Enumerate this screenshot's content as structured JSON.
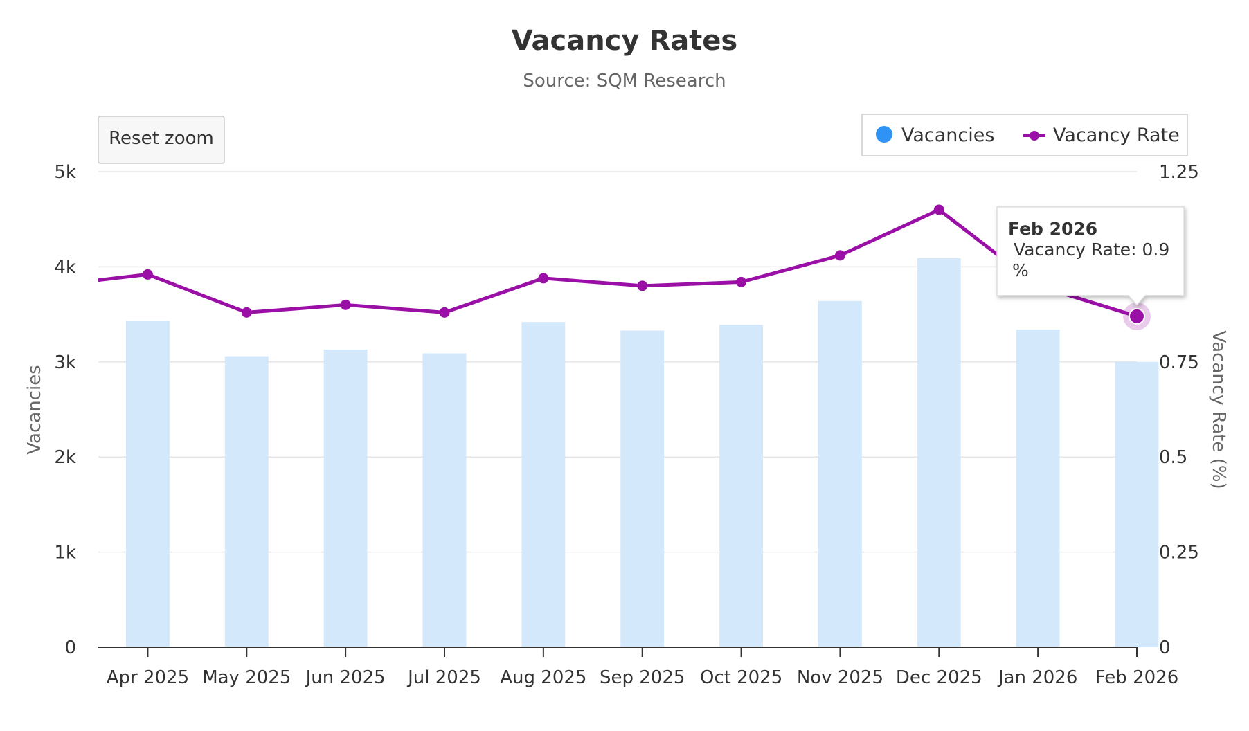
{
  "chart_data": {
    "type": "bar",
    "title": "Vacancy Rates",
    "subtitle": "Source: SQM Research",
    "categories": [
      "Apr 2025",
      "May 2025",
      "Jun 2025",
      "Jul 2025",
      "Aug 2025",
      "Sep 2025",
      "Oct 2025",
      "Nov 2025",
      "Dec 2025",
      "Jan 2026",
      "Feb 2026"
    ],
    "series": [
      {
        "name": "Vacancies",
        "type": "bar",
        "axis": "left",
        "color": "#d4e8fc",
        "legend_color": "#2e93f5",
        "values": [
          3430,
          3060,
          3130,
          3090,
          3420,
          3330,
          3390,
          3640,
          4090,
          3340,
          3000
        ]
      },
      {
        "name": "Vacancy Rate",
        "type": "line",
        "axis": "right",
        "color": "#9a0fa6",
        "values": [
          0.98,
          0.88,
          0.9,
          0.88,
          0.97,
          0.95,
          0.96,
          1.03,
          1.15,
          0.95,
          0.87
        ],
        "leading_value": 0.95
      }
    ],
    "y_left": {
      "label": "Vacancies",
      "ylim": [
        0,
        5000
      ],
      "ticks": [
        "0",
        "1k",
        "2k",
        "3k",
        "4k",
        "5k"
      ]
    },
    "y_right": {
      "label": "Vacancy Rate (%)",
      "ylim": [
        0,
        1.25
      ],
      "ticks": [
        "0",
        "0.25",
        "0.5",
        "0.75",
        "",
        "1.25"
      ]
    },
    "grid": true,
    "legend_position": "top-right"
  },
  "ui": {
    "reset_zoom_label": "Reset zoom",
    "tooltip": {
      "header": "Feb 2026",
      "line1": " Vacancy Rate: 0.9",
      "line2": "%",
      "index": 10
    }
  }
}
